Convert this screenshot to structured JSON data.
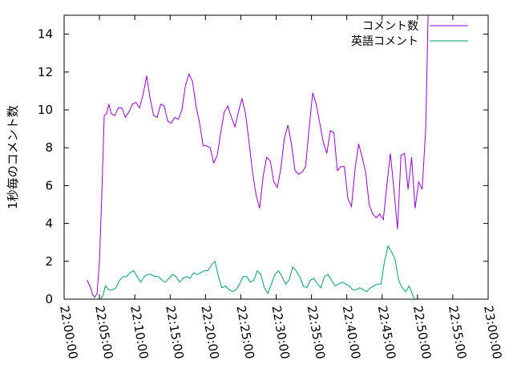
{
  "chart_data": {
    "type": "line",
    "title": "",
    "xlabel": "",
    "ylabel": "1秒毎のコメント数",
    "xlim": [
      "22:00:00",
      "23:00:00"
    ],
    "ylim": [
      0,
      15
    ],
    "grid": false,
    "legend_position": "top-right",
    "x_ticks": [
      "22:00:00",
      "22:05:00",
      "22:10:00",
      "22:15:00",
      "22:20:00",
      "22:25:00",
      "22:30:00",
      "22:35:00",
      "22:40:00",
      "22:45:00",
      "22:50:00",
      "22:55:00",
      "23:00:00"
    ],
    "y_ticks": [
      "0",
      "2",
      "4",
      "6",
      "8",
      "10",
      "12",
      "14"
    ],
    "series": [
      {
        "name": "コメント数",
        "color": "#9400d3",
        "points": [
          [
            "22:03:15",
            1.0
          ],
          [
            "22:03:45",
            0.6
          ],
          [
            "22:04:00",
            0.25
          ],
          [
            "22:04:20",
            0.1
          ],
          [
            "22:04:40",
            0.3
          ],
          [
            "22:05:00",
            2.0
          ],
          [
            "22:05:20",
            5.5
          ],
          [
            "22:05:40",
            9.7
          ],
          [
            "22:06:00",
            9.8
          ],
          [
            "22:06:20",
            10.3
          ],
          [
            "22:06:40",
            9.8
          ],
          [
            "22:07:10",
            9.7
          ],
          [
            "22:07:40",
            10.1
          ],
          [
            "22:08:10",
            10.1
          ],
          [
            "22:08:40",
            9.6
          ],
          [
            "22:09:10",
            9.9
          ],
          [
            "22:09:40",
            10.3
          ],
          [
            "22:10:10",
            10.4
          ],
          [
            "22:10:40",
            10.1
          ],
          [
            "22:11:10",
            10.8
          ],
          [
            "22:11:40",
            11.8
          ],
          [
            "22:12:10",
            10.6
          ],
          [
            "22:12:40",
            9.7
          ],
          [
            "22:13:10",
            9.6
          ],
          [
            "22:13:40",
            10.3
          ],
          [
            "22:14:10",
            10.2
          ],
          [
            "22:14:40",
            9.4
          ],
          [
            "22:15:10",
            9.3
          ],
          [
            "22:15:40",
            9.6
          ],
          [
            "22:16:10",
            9.5
          ],
          [
            "22:16:40",
            10.0
          ],
          [
            "22:17:10",
            11.3
          ],
          [
            "22:17:40",
            11.9
          ],
          [
            "22:18:10",
            11.5
          ],
          [
            "22:18:40",
            10.2
          ],
          [
            "22:19:10",
            9.3
          ],
          [
            "22:19:40",
            8.1
          ],
          [
            "22:20:10",
            8.1
          ],
          [
            "22:20:40",
            8.0
          ],
          [
            "22:21:10",
            7.2
          ],
          [
            "22:21:40",
            7.6
          ],
          [
            "22:22:10",
            8.8
          ],
          [
            "22:22:40",
            9.9
          ],
          [
            "22:23:10",
            10.2
          ],
          [
            "22:23:40",
            9.6
          ],
          [
            "22:24:10",
            9.1
          ],
          [
            "22:24:40",
            9.9
          ],
          [
            "22:25:10",
            10.6
          ],
          [
            "22:25:40",
            9.8
          ],
          [
            "22:26:10",
            8.3
          ],
          [
            "22:26:40",
            6.7
          ],
          [
            "22:27:10",
            5.5
          ],
          [
            "22:27:40",
            4.8
          ],
          [
            "22:28:10",
            6.5
          ],
          [
            "22:28:40",
            7.5
          ],
          [
            "22:29:10",
            7.3
          ],
          [
            "22:29:40",
            6.2
          ],
          [
            "22:30:10",
            5.9
          ],
          [
            "22:30:40",
            6.9
          ],
          [
            "22:31:10",
            8.5
          ],
          [
            "22:31:40",
            9.2
          ],
          [
            "22:32:10",
            8.2
          ],
          [
            "22:32:40",
            6.8
          ],
          [
            "22:33:10",
            6.6
          ],
          [
            "22:33:40",
            6.7
          ],
          [
            "22:34:10",
            7.0
          ],
          [
            "22:34:40",
            9.0
          ],
          [
            "22:35:10",
            10.9
          ],
          [
            "22:35:40",
            10.3
          ],
          [
            "22:36:10",
            9.3
          ],
          [
            "22:36:40",
            8.3
          ],
          [
            "22:37:10",
            7.7
          ],
          [
            "22:37:40",
            8.9
          ],
          [
            "22:38:10",
            8.8
          ],
          [
            "22:38:40",
            6.8
          ],
          [
            "22:39:10",
            7.0
          ],
          [
            "22:39:40",
            7.0
          ],
          [
            "22:40:10",
            5.3
          ],
          [
            "22:40:40",
            4.9
          ],
          [
            "22:41:10",
            6.9
          ],
          [
            "22:41:40",
            8.2
          ],
          [
            "22:42:10",
            7.5
          ],
          [
            "22:42:40",
            6.7
          ],
          [
            "22:43:10",
            5.0
          ],
          [
            "22:43:40",
            4.5
          ],
          [
            "22:44:10",
            4.3
          ],
          [
            "22:44:40",
            4.5
          ],
          [
            "22:45:10",
            4.2
          ],
          [
            "22:45:40",
            6.0
          ],
          [
            "22:46:10",
            7.7
          ],
          [
            "22:46:40",
            5.8
          ],
          [
            "22:47:10",
            3.7
          ],
          [
            "22:47:40",
            7.6
          ],
          [
            "22:48:10",
            7.7
          ],
          [
            "22:48:40",
            5.8
          ],
          [
            "22:49:10",
            7.5
          ],
          [
            "22:49:40",
            4.8
          ],
          [
            "22:50:10",
            6.2
          ],
          [
            "22:50:40",
            5.8
          ],
          [
            "22:51:10",
            9.0
          ],
          [
            "22:51:30",
            15.0
          ]
        ]
      },
      {
        "name": "英語コメント",
        "color": "#009e73",
        "points": [
          [
            "22:05:10",
            0.0
          ],
          [
            "22:05:30",
            0.2
          ],
          [
            "22:05:50",
            0.7
          ],
          [
            "22:06:20",
            0.5
          ],
          [
            "22:06:50",
            0.5
          ],
          [
            "22:07:20",
            0.6
          ],
          [
            "22:07:50",
            1.0
          ],
          [
            "22:08:20",
            1.2
          ],
          [
            "22:08:50",
            1.2
          ],
          [
            "22:09:20",
            1.4
          ],
          [
            "22:09:50",
            1.5
          ],
          [
            "22:10:20",
            1.2
          ],
          [
            "22:10:50",
            0.9
          ],
          [
            "22:11:20",
            1.2
          ],
          [
            "22:11:50",
            1.3
          ],
          [
            "22:12:20",
            1.3
          ],
          [
            "22:12:50",
            1.2
          ],
          [
            "22:13:20",
            1.2
          ],
          [
            "22:13:50",
            1.0
          ],
          [
            "22:14:20",
            0.9
          ],
          [
            "22:14:50",
            1.1
          ],
          [
            "22:15:20",
            1.3
          ],
          [
            "22:15:50",
            1.2
          ],
          [
            "22:16:20",
            0.9
          ],
          [
            "22:16:50",
            1.1
          ],
          [
            "22:17:20",
            1.2
          ],
          [
            "22:17:50",
            1.1
          ],
          [
            "22:18:20",
            1.4
          ],
          [
            "22:18:50",
            1.3
          ],
          [
            "22:19:20",
            1.4
          ],
          [
            "22:19:50",
            1.5
          ],
          [
            "22:20:20",
            1.5
          ],
          [
            "22:20:50",
            1.8
          ],
          [
            "22:21:20",
            2.0
          ],
          [
            "22:21:50",
            1.2
          ],
          [
            "22:22:20",
            0.6
          ],
          [
            "22:22:50",
            0.7
          ],
          [
            "22:23:20",
            0.5
          ],
          [
            "22:23:50",
            0.4
          ],
          [
            "22:24:20",
            0.5
          ],
          [
            "22:24:50",
            0.8
          ],
          [
            "22:25:20",
            1.2
          ],
          [
            "22:25:50",
            1.2
          ],
          [
            "22:26:20",
            0.9
          ],
          [
            "22:26:50",
            1.0
          ],
          [
            "22:27:20",
            1.5
          ],
          [
            "22:27:50",
            1.3
          ],
          [
            "22:28:20",
            0.6
          ],
          [
            "22:28:50",
            0.3
          ],
          [
            "22:29:20",
            0.8
          ],
          [
            "22:29:50",
            1.3
          ],
          [
            "22:30:20",
            1.5
          ],
          [
            "22:30:50",
            1.2
          ],
          [
            "22:31:20",
            0.8
          ],
          [
            "22:31:50",
            1.0
          ],
          [
            "22:32:20",
            1.7
          ],
          [
            "22:32:50",
            1.5
          ],
          [
            "22:33:20",
            1.2
          ],
          [
            "22:33:50",
            0.7
          ],
          [
            "22:34:20",
            0.6
          ],
          [
            "22:34:50",
            1.0
          ],
          [
            "22:35:20",
            1.1
          ],
          [
            "22:35:50",
            0.8
          ],
          [
            "22:36:20",
            0.6
          ],
          [
            "22:36:50",
            1.2
          ],
          [
            "22:37:20",
            1.3
          ],
          [
            "22:37:50",
            1.0
          ],
          [
            "22:38:20",
            0.7
          ],
          [
            "22:38:50",
            0.8
          ],
          [
            "22:39:20",
            0.9
          ],
          [
            "22:39:50",
            0.8
          ],
          [
            "22:40:20",
            0.7
          ],
          [
            "22:40:50",
            0.5
          ],
          [
            "22:41:20",
            0.5
          ],
          [
            "22:41:50",
            0.6
          ],
          [
            "22:42:20",
            0.5
          ],
          [
            "22:42:50",
            0.4
          ],
          [
            "22:43:20",
            0.6
          ],
          [
            "22:43:50",
            0.7
          ],
          [
            "22:44:20",
            0.8
          ],
          [
            "22:44:50",
            0.8
          ],
          [
            "22:45:20",
            2.0
          ],
          [
            "22:45:50",
            2.8
          ],
          [
            "22:46:20",
            2.5
          ],
          [
            "22:46:50",
            2.1
          ],
          [
            "22:47:20",
            1.0
          ],
          [
            "22:47:50",
            0.6
          ],
          [
            "22:48:20",
            0.4
          ],
          [
            "22:48:50",
            0.7
          ],
          [
            "22:49:20",
            0.2
          ],
          [
            "22:49:40",
            0.0
          ]
        ]
      }
    ]
  }
}
